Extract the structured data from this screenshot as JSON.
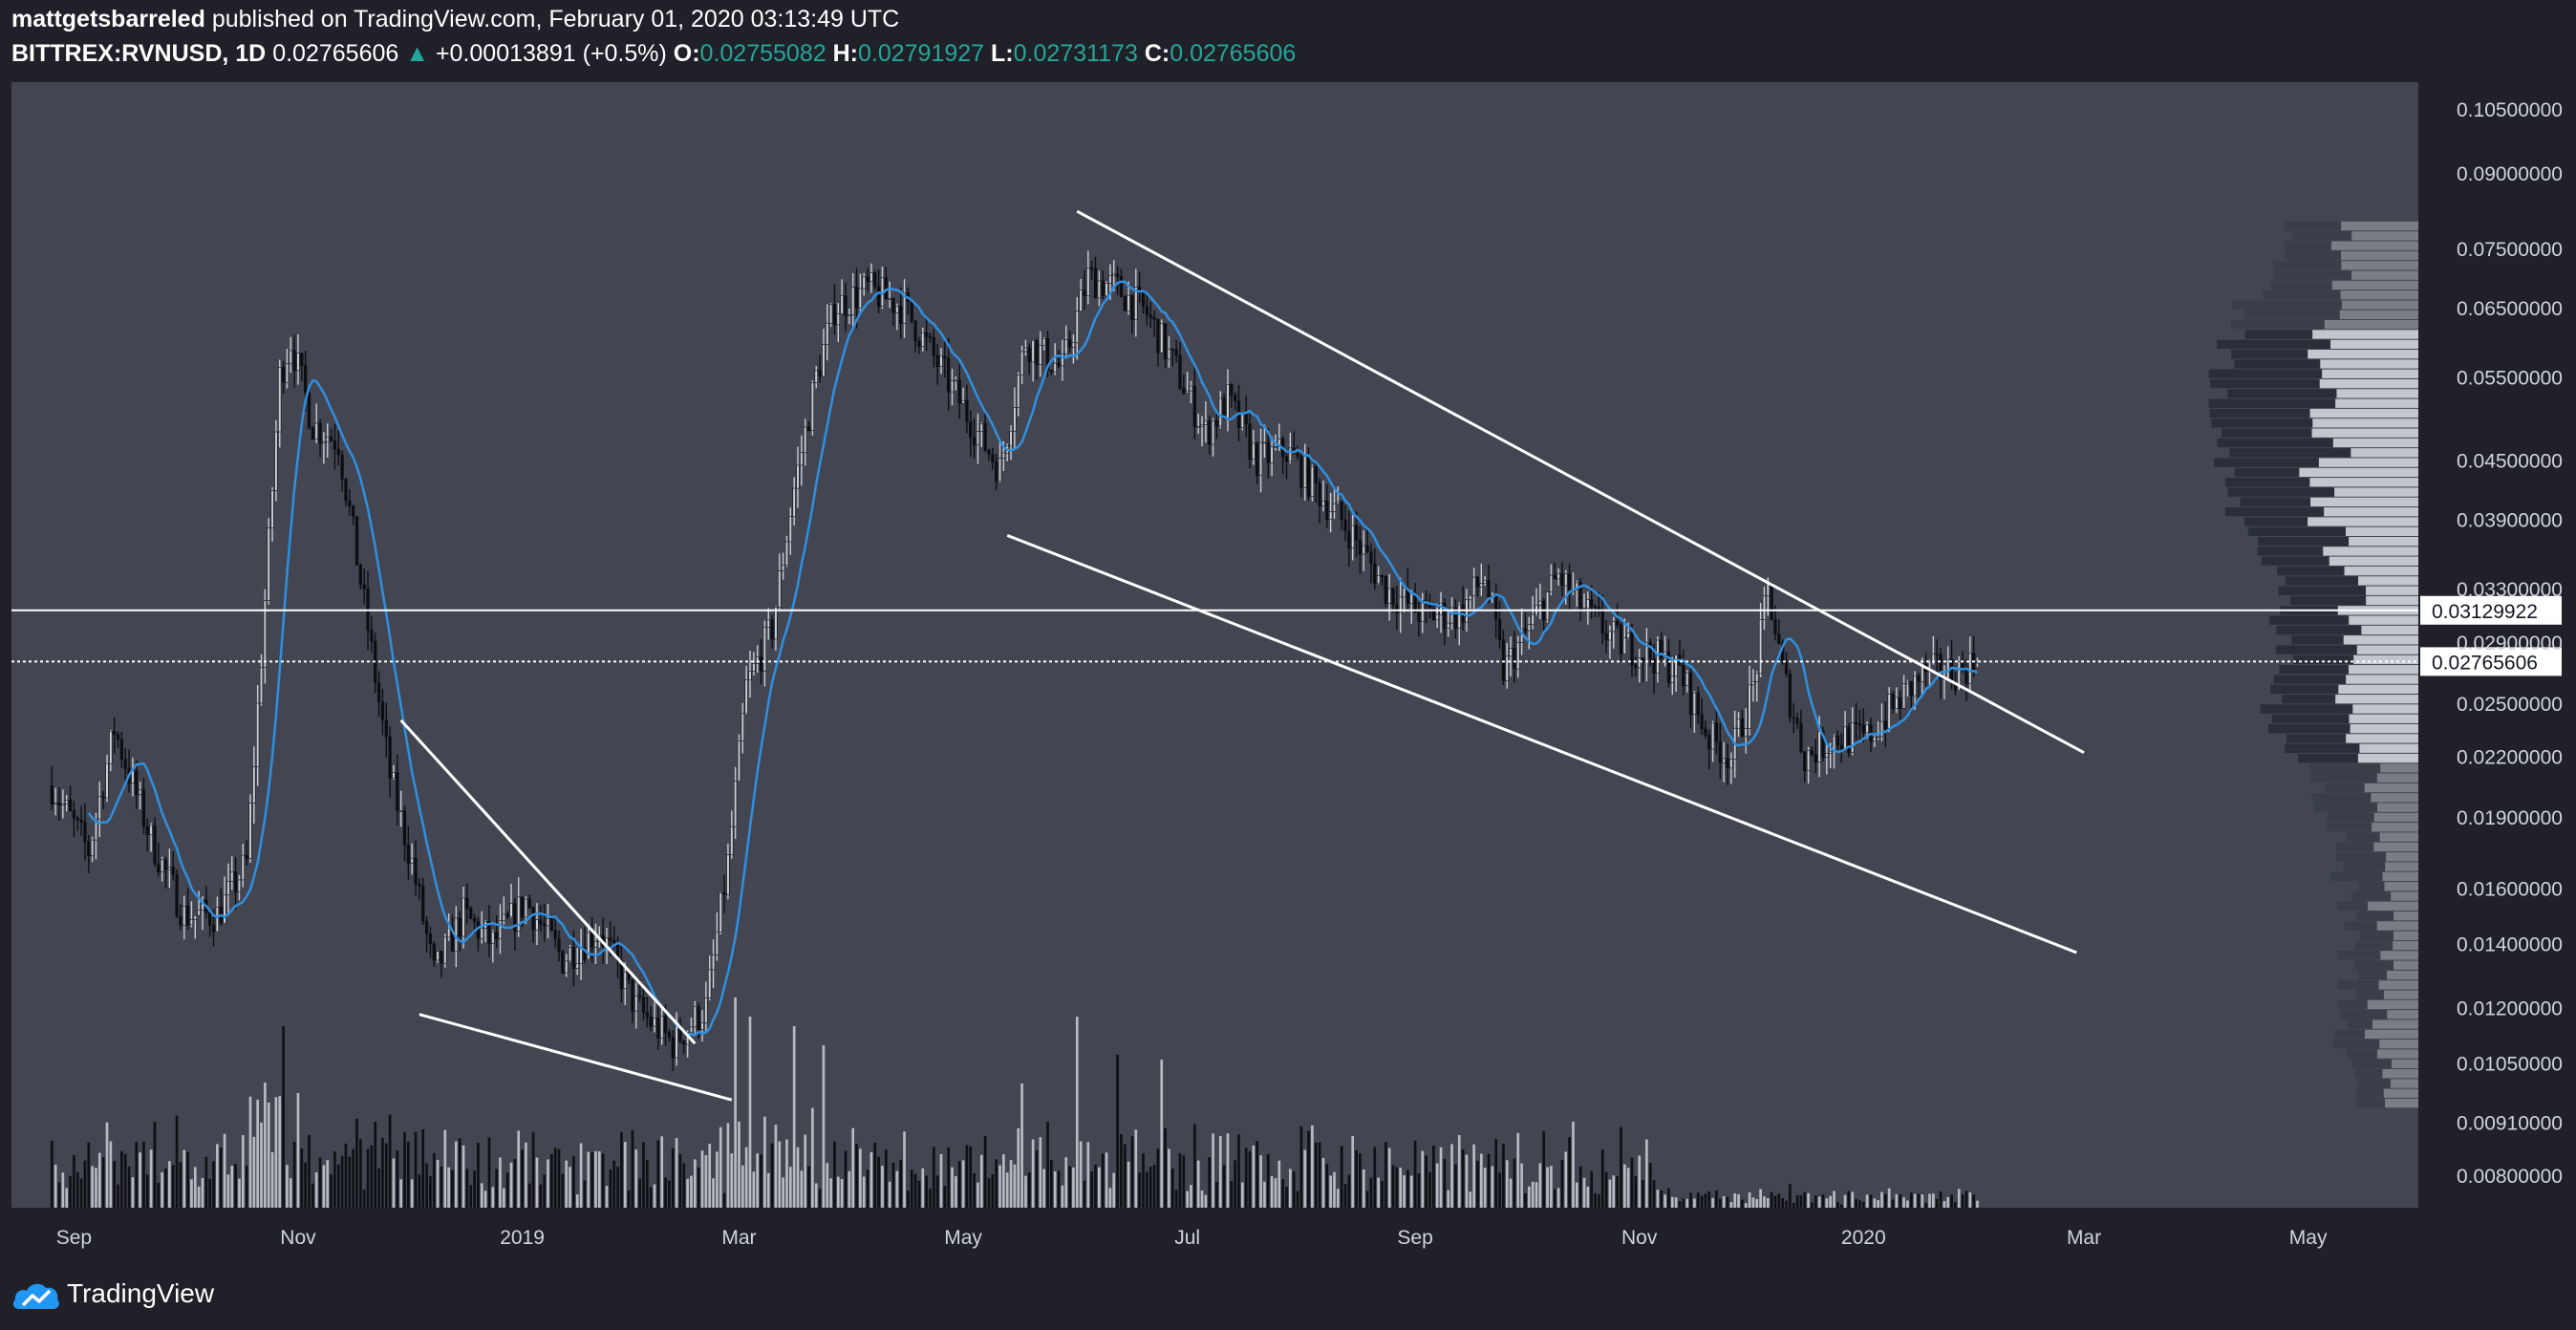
{
  "header": {
    "author": "mattgetsbarreled",
    "published_text": "published on TradingView.com, February 01, 2020 03:13:49 UTC",
    "symbol": "BITTREX:RVNUSD, 1D",
    "last": "0.02765606",
    "change": "+0.00013891 (+0.5%)",
    "o_label": "O:",
    "o": "0.02755082",
    "h_label": "H:",
    "h": "0.02791927",
    "l_label": "L:",
    "l": "0.02731173",
    "c_label": "C:",
    "c": "0.02765606"
  },
  "footer": {
    "brand": "TradingView",
    "logo_icon": "tradingview-cloud-icon"
  },
  "colors": {
    "background": "#1f2028",
    "pane": "#434651",
    "up_candle": "#c9ccd3",
    "down_candle": "#0d0e12",
    "ma_line": "#2f8fe0",
    "green_text": "#26a69a"
  },
  "chart_data": {
    "type": "candlestick",
    "symbol": "BITTREX:RVNUSD",
    "interval": "1D",
    "y_scale": "log",
    "ylim": [
      0.0074,
      0.112
    ],
    "xlim": [
      "2018-08-15",
      "2020-05-31"
    ],
    "x_ticks": [
      {
        "date": "2018-09-01",
        "label": "Sep"
      },
      {
        "date": "2018-11-01",
        "label": "Nov"
      },
      {
        "date": "2019-01-01",
        "label": "2019"
      },
      {
        "date": "2019-03-01",
        "label": "Mar"
      },
      {
        "date": "2019-05-01",
        "label": "May"
      },
      {
        "date": "2019-07-01",
        "label": "Jul"
      },
      {
        "date": "2019-09-01",
        "label": "Sep"
      },
      {
        "date": "2019-11-01",
        "label": "Nov"
      },
      {
        "date": "2020-01-01",
        "label": "2020"
      },
      {
        "date": "2020-03-01",
        "label": "Mar"
      },
      {
        "date": "2020-05-01",
        "label": "May"
      }
    ],
    "y_ticks": [
      {
        "value": 0.105,
        "label": "0.10500000"
      },
      {
        "value": 0.09,
        "label": "0.09000000"
      },
      {
        "value": 0.075,
        "label": "0.07500000"
      },
      {
        "value": 0.065,
        "label": "0.06500000"
      },
      {
        "value": 0.055,
        "label": "0.05500000"
      },
      {
        "value": 0.045,
        "label": "0.04500000"
      },
      {
        "value": 0.039,
        "label": "0.03900000"
      },
      {
        "value": 0.033,
        "label": "0.03300000"
      },
      {
        "value": 0.029,
        "label": "0.02900000"
      },
      {
        "value": 0.025,
        "label": "0.02500000"
      },
      {
        "value": 0.022,
        "label": "0.02200000"
      },
      {
        "value": 0.019,
        "label": "0.01900000"
      },
      {
        "value": 0.016,
        "label": "0.01600000"
      },
      {
        "value": 0.014,
        "label": "0.01400000"
      },
      {
        "value": 0.012,
        "label": "0.01200000"
      },
      {
        "value": 0.0105,
        "label": "0.01050000"
      },
      {
        "value": 0.0091,
        "label": "0.00910000"
      },
      {
        "value": 0.008,
        "label": "0.00800000"
      }
    ],
    "close_path": [
      [
        "2018-08-26",
        0.0205
      ],
      [
        "2018-09-05",
        0.0175
      ],
      [
        "2018-09-12",
        0.0235
      ],
      [
        "2018-09-22",
        0.018
      ],
      [
        "2018-10-01",
        0.015
      ],
      [
        "2018-10-10",
        0.015
      ],
      [
        "2018-10-18",
        0.017
      ],
      [
        "2018-10-22",
        0.028
      ],
      [
        "2018-10-27",
        0.055
      ],
      [
        "2018-10-30",
        0.06
      ],
      [
        "2018-11-05",
        0.049
      ],
      [
        "2018-11-12",
        0.047
      ],
      [
        "2018-11-20",
        0.03
      ],
      [
        "2018-11-26",
        0.021
      ],
      [
        "2018-12-02",
        0.017
      ],
      [
        "2018-12-08",
        0.013
      ],
      [
        "2018-12-16",
        0.015
      ],
      [
        "2018-12-24",
        0.014
      ],
      [
        "2019-01-02",
        0.0155
      ],
      [
        "2019-01-12",
        0.0135
      ],
      [
        "2019-01-22",
        0.0145
      ],
      [
        "2019-02-01",
        0.012
      ],
      [
        "2019-02-11",
        0.011
      ],
      [
        "2019-02-20",
        0.012
      ],
      [
        "2019-02-26",
        0.017
      ],
      [
        "2019-03-03",
        0.026
      ],
      [
        "2019-03-10",
        0.03
      ],
      [
        "2019-03-16",
        0.042
      ],
      [
        "2019-03-22",
        0.055
      ],
      [
        "2019-03-27",
        0.065
      ],
      [
        "2019-04-05",
        0.068
      ],
      [
        "2019-04-15",
        0.065
      ],
      [
        "2019-04-25",
        0.056
      ],
      [
        "2019-05-05",
        0.048
      ],
      [
        "2019-05-11",
        0.044
      ],
      [
        "2019-05-18",
        0.06
      ],
      [
        "2019-05-28",
        0.056
      ],
      [
        "2019-06-04",
        0.07
      ],
      [
        "2019-06-12",
        0.068
      ],
      [
        "2019-06-20",
        0.064
      ],
      [
        "2019-06-28",
        0.056
      ],
      [
        "2019-07-06",
        0.048
      ],
      [
        "2019-07-12",
        0.052
      ],
      [
        "2019-07-20",
        0.045
      ],
      [
        "2019-07-28",
        0.046
      ],
      [
        "2019-08-05",
        0.042
      ],
      [
        "2019-08-14",
        0.038
      ],
      [
        "2019-08-24",
        0.033
      ],
      [
        "2019-09-03",
        0.031
      ],
      [
        "2019-09-13",
        0.031
      ],
      [
        "2019-09-20",
        0.034
      ],
      [
        "2019-09-25",
        0.027
      ],
      [
        "2019-10-02",
        0.03
      ],
      [
        "2019-10-10",
        0.034
      ],
      [
        "2019-10-18",
        0.031
      ],
      [
        "2019-10-26",
        0.029
      ],
      [
        "2019-11-05",
        0.028
      ],
      [
        "2019-11-12",
        0.027
      ],
      [
        "2019-11-20",
        0.023
      ],
      [
        "2019-11-26",
        0.022
      ],
      [
        "2019-12-02",
        0.026
      ],
      [
        "2019-12-06",
        0.033
      ],
      [
        "2019-12-10",
        0.027
      ],
      [
        "2019-12-16",
        0.022
      ],
      [
        "2019-12-24",
        0.023
      ],
      [
        "2020-01-02",
        0.023
      ],
      [
        "2020-01-10",
        0.025
      ],
      [
        "2020-01-18",
        0.027
      ],
      [
        "2020-01-26",
        0.027
      ],
      [
        "2020-02-01",
        0.02765606
      ]
    ],
    "horizontal_lines": [
      {
        "value": 0.03129922,
        "label": "0.03129922",
        "style": "solid"
      },
      {
        "value": 0.02765606,
        "label": "0.02765606",
        "style": "dotted"
      }
    ],
    "trendlines": [
      {
        "from": [
          "2019-06-01",
          0.082
        ],
        "to": [
          "2020-03-01",
          0.0222
        ]
      },
      {
        "from": [
          "2019-05-13",
          0.0375
        ],
        "to": [
          "2020-02-28",
          0.0137
        ]
      },
      {
        "from": [
          "2018-11-29",
          0.024
        ],
        "to": [
          "2019-02-17",
          0.011
        ]
      },
      {
        "from": [
          "2018-12-04",
          0.0118
        ],
        "to": [
          "2019-02-27",
          0.0096
        ]
      }
    ],
    "moving_average": {
      "period": 10,
      "color": "#2f8fe0"
    },
    "volume_profile": {
      "value_area_high": 0.062,
      "value_area_low": 0.0215
    }
  }
}
